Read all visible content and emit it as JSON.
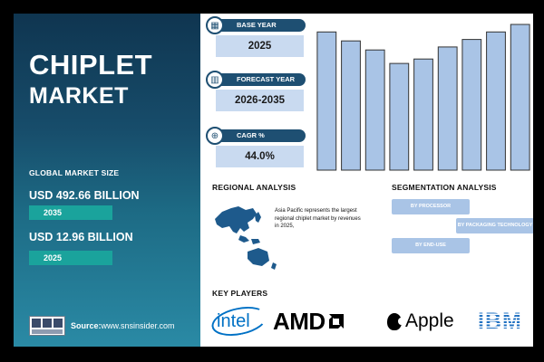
{
  "left_panel": {
    "title_line1": "CHIPLET",
    "title_line2": "MARKET",
    "global_market_size_label": "GLOBAL MARKET SIZE",
    "value_2035": "USD 492.66 BILLION",
    "year_2035": "2035",
    "value_2025": "USD 12.96 BILLION",
    "year_2025": "2025",
    "logo_text": "S&S INSIDER Strategy & Stats",
    "source_label": "Source:",
    "source_url": "www.snsinsider.com"
  },
  "stats": {
    "base_year": {
      "label": "BASE YEAR",
      "value": "2025",
      "icon": "calendar-icon"
    },
    "forecast_year": {
      "label": "FORECAST YEAR",
      "value": "2026-2035",
      "icon": "chart-icon"
    },
    "cagr": {
      "label": "CAGR %",
      "value": "44.0%",
      "icon": "growth-icon"
    }
  },
  "chart_data": {
    "type": "bar",
    "values": [
      92,
      86,
      80,
      71,
      74,
      82,
      87,
      92,
      97
    ],
    "ylim": [
      0,
      100
    ],
    "color": "#a9c4e6",
    "stroke": "#333333"
  },
  "regional": {
    "heading": "REGIONAL ANALYSIS",
    "text": "Asia Pacific represents the largest regional chiplet market by revenues in 2025,",
    "map_color": "#1e5a8c"
  },
  "segmentation": {
    "heading": "SEGMENTATION ANALYSIS",
    "items": [
      "BY PROCESSOR",
      "BY PACKAGING TECHNOLOGY",
      "BY END-USE"
    ]
  },
  "key_players": {
    "heading": "KEY PLAYERS",
    "brands": [
      "intel",
      "AMD",
      "Apple",
      "IBM"
    ]
  },
  "colors": {
    "panel_dark": "#0f3550",
    "pill_teal": "#1aa39c",
    "card_header": "#1e4f72",
    "card_box": "#c9daf0"
  }
}
